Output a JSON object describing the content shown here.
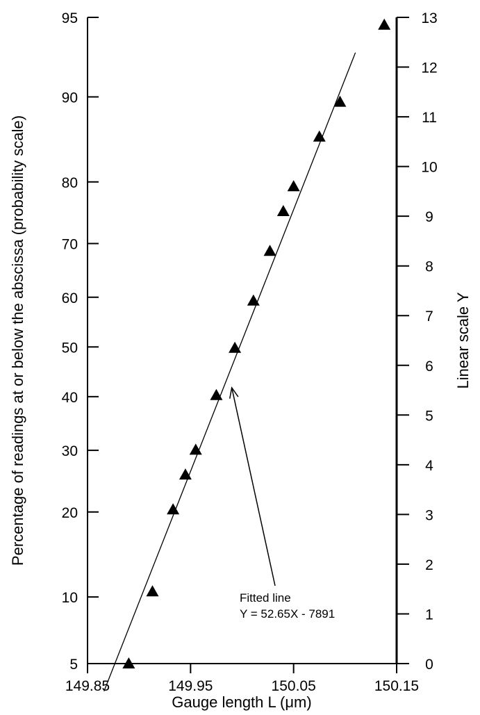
{
  "chart_data": {
    "type": "scatter",
    "title": "",
    "xlabel": "Gauge length L (μm)",
    "ylabel_left": "Percentage of readings at or below the abscissa (probability scale)",
    "ylabel_right": "Linear scale Y",
    "xlim": [
      149.85,
      150.15
    ],
    "x_ticks": [
      "149.85",
      "149.95",
      "150.05",
      "150.15"
    ],
    "left_ticks": [
      {
        "label": "95",
        "y_linear": 13
      },
      {
        "label": "90",
        "y_linear": 11.4
      },
      {
        "label": "80",
        "y_linear": 9.69
      },
      {
        "label": "70",
        "y_linear": 8.45
      },
      {
        "label": "60",
        "y_linear": 7.37
      },
      {
        "label": "50",
        "y_linear": 6.37
      },
      {
        "label": "40",
        "y_linear": 5.37
      },
      {
        "label": "30",
        "y_linear": 4.29
      },
      {
        "label": "20",
        "y_linear": 3.05
      },
      {
        "label": "10",
        "y_linear": 1.34
      },
      {
        "label": "5",
        "y_linear": 0
      }
    ],
    "ylim_right": [
      0,
      13
    ],
    "right_ticks": [
      "0",
      "1",
      "2",
      "3",
      "4",
      "5",
      "6",
      "7",
      "8",
      "9",
      "10",
      "11",
      "12",
      "13"
    ],
    "points": [
      {
        "x": 149.89,
        "y": 0.0
      },
      {
        "x": 149.913,
        "y": 1.45
      },
      {
        "x": 149.933,
        "y": 3.1
      },
      {
        "x": 149.945,
        "y": 3.8
      },
      {
        "x": 149.955,
        "y": 4.3
      },
      {
        "x": 149.975,
        "y": 5.4
      },
      {
        "x": 149.993,
        "y": 6.35
      },
      {
        "x": 150.011,
        "y": 7.3
      },
      {
        "x": 150.027,
        "y": 8.3
      },
      {
        "x": 150.04,
        "y": 9.1
      },
      {
        "x": 150.05,
        "y": 9.6
      },
      {
        "x": 150.075,
        "y": 10.6
      },
      {
        "x": 150.095,
        "y": 11.3
      },
      {
        "x": 150.138,
        "y": 12.85
      }
    ],
    "fit_line": {
      "slope": 52.65,
      "intercept": -7891,
      "x_start": 149.866,
      "x_end": 150.11
    },
    "annotation": {
      "line1": "Fitted line",
      "line2": "Y = 52.65X - 7891",
      "target_x": 149.99,
      "target_y": 5.55
    }
  }
}
